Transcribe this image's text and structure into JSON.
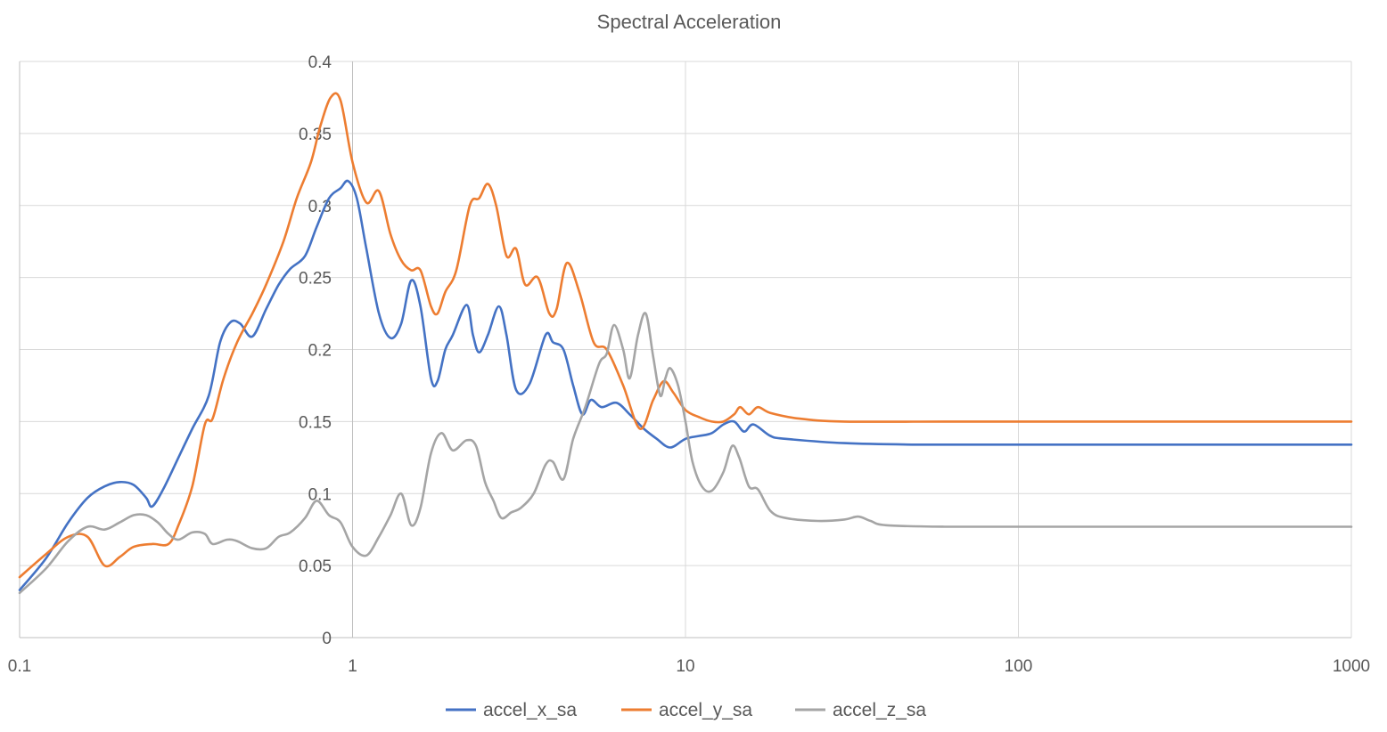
{
  "chart_data": {
    "type": "line",
    "title": "Spectral Acceleration",
    "xscale": "log",
    "xlim": [
      0.1,
      1000
    ],
    "ylim": [
      0,
      0.4
    ],
    "x_ticks": [
      0.1,
      1,
      10,
      100,
      1000
    ],
    "x_tick_labels": [
      "0.1",
      "1",
      "10",
      "100",
      "1000"
    ],
    "y_ticks": [
      0,
      0.05,
      0.1,
      0.15,
      0.2,
      0.25,
      0.3,
      0.35,
      0.4
    ],
    "y_tick_labels": [
      "0",
      "0.05",
      "0.1",
      "0.15",
      "0.2",
      "0.25",
      "0.3",
      "0.35",
      "0.4"
    ],
    "grid": true,
    "legend_position": "bottom",
    "colors": {
      "accel_x_sa": "#4472c4",
      "accel_y_sa": "#ed7d31",
      "accel_z_sa": "#a5a5a5"
    },
    "series": [
      {
        "name": "accel_x_sa",
        "color": "#4472c4",
        "points": [
          [
            0.1,
            0.033
          ],
          [
            0.12,
            0.055
          ],
          [
            0.14,
            0.08
          ],
          [
            0.16,
            0.097
          ],
          [
            0.18,
            0.105
          ],
          [
            0.2,
            0.108
          ],
          [
            0.22,
            0.106
          ],
          [
            0.24,
            0.097
          ],
          [
            0.25,
            0.091
          ],
          [
            0.27,
            0.103
          ],
          [
            0.3,
            0.125
          ],
          [
            0.33,
            0.145
          ],
          [
            0.37,
            0.168
          ],
          [
            0.4,
            0.205
          ],
          [
            0.43,
            0.219
          ],
          [
            0.46,
            0.218
          ],
          [
            0.5,
            0.209
          ],
          [
            0.55,
            0.228
          ],
          [
            0.6,
            0.245
          ],
          [
            0.65,
            0.256
          ],
          [
            0.72,
            0.265
          ],
          [
            0.78,
            0.285
          ],
          [
            0.85,
            0.305
          ],
          [
            0.92,
            0.312
          ],
          [
            0.97,
            0.317
          ],
          [
            1.03,
            0.305
          ],
          [
            1.1,
            0.27
          ],
          [
            1.2,
            0.225
          ],
          [
            1.3,
            0.208
          ],
          [
            1.4,
            0.218
          ],
          [
            1.5,
            0.248
          ],
          [
            1.6,
            0.23
          ],
          [
            1.72,
            0.18
          ],
          [
            1.8,
            0.178
          ],
          [
            1.9,
            0.2
          ],
          [
            2.0,
            0.21
          ],
          [
            2.2,
            0.231
          ],
          [
            2.3,
            0.21
          ],
          [
            2.4,
            0.198
          ],
          [
            2.55,
            0.21
          ],
          [
            2.75,
            0.23
          ],
          [
            2.9,
            0.21
          ],
          [
            3.1,
            0.172
          ],
          [
            3.4,
            0.176
          ],
          [
            3.8,
            0.21
          ],
          [
            4.0,
            0.205
          ],
          [
            4.3,
            0.2
          ],
          [
            4.6,
            0.175
          ],
          [
            4.9,
            0.155
          ],
          [
            5.2,
            0.165
          ],
          [
            5.6,
            0.16
          ],
          [
            6.2,
            0.163
          ],
          [
            6.8,
            0.155
          ],
          [
            7.5,
            0.145
          ],
          [
            8.2,
            0.138
          ],
          [
            9.0,
            0.132
          ],
          [
            10,
            0.138
          ],
          [
            11,
            0.14
          ],
          [
            12,
            0.142
          ],
          [
            13,
            0.148
          ],
          [
            14,
            0.15
          ],
          [
            15,
            0.143
          ],
          [
            16,
            0.148
          ],
          [
            18,
            0.14
          ],
          [
            20,
            0.138
          ],
          [
            30,
            0.135
          ],
          [
            50,
            0.134
          ],
          [
            100,
            0.134
          ],
          [
            200,
            0.134
          ],
          [
            500,
            0.134
          ],
          [
            1000,
            0.134
          ]
        ]
      },
      {
        "name": "accel_y_sa",
        "color": "#ed7d31",
        "points": [
          [
            0.1,
            0.042
          ],
          [
            0.12,
            0.058
          ],
          [
            0.14,
            0.07
          ],
          [
            0.16,
            0.07
          ],
          [
            0.18,
            0.05
          ],
          [
            0.2,
            0.056
          ],
          [
            0.22,
            0.063
          ],
          [
            0.25,
            0.065
          ],
          [
            0.28,
            0.065
          ],
          [
            0.3,
            0.078
          ],
          [
            0.33,
            0.105
          ],
          [
            0.36,
            0.148
          ],
          [
            0.38,
            0.152
          ],
          [
            0.41,
            0.18
          ],
          [
            0.45,
            0.205
          ],
          [
            0.5,
            0.225
          ],
          [
            0.55,
            0.245
          ],
          [
            0.62,
            0.275
          ],
          [
            0.68,
            0.305
          ],
          [
            0.75,
            0.33
          ],
          [
            0.8,
            0.355
          ],
          [
            0.86,
            0.375
          ],
          [
            0.92,
            0.373
          ],
          [
            1.0,
            0.33
          ],
          [
            1.1,
            0.302
          ],
          [
            1.2,
            0.31
          ],
          [
            1.3,
            0.28
          ],
          [
            1.4,
            0.262
          ],
          [
            1.5,
            0.255
          ],
          [
            1.6,
            0.255
          ],
          [
            1.72,
            0.23
          ],
          [
            1.8,
            0.225
          ],
          [
            1.9,
            0.24
          ],
          [
            2.05,
            0.255
          ],
          [
            2.25,
            0.3
          ],
          [
            2.4,
            0.305
          ],
          [
            2.55,
            0.315
          ],
          [
            2.7,
            0.3
          ],
          [
            2.9,
            0.265
          ],
          [
            3.1,
            0.27
          ],
          [
            3.3,
            0.245
          ],
          [
            3.6,
            0.25
          ],
          [
            3.9,
            0.225
          ],
          [
            4.1,
            0.228
          ],
          [
            4.4,
            0.26
          ],
          [
            4.8,
            0.24
          ],
          [
            5.3,
            0.205
          ],
          [
            5.8,
            0.2
          ],
          [
            6.5,
            0.175
          ],
          [
            7.3,
            0.145
          ],
          [
            8.0,
            0.165
          ],
          [
            8.6,
            0.178
          ],
          [
            9.2,
            0.17
          ],
          [
            10,
            0.158
          ],
          [
            11,
            0.153
          ],
          [
            12,
            0.15
          ],
          [
            13,
            0.15
          ],
          [
            14,
            0.155
          ],
          [
            14.6,
            0.16
          ],
          [
            15.5,
            0.155
          ],
          [
            16.5,
            0.16
          ],
          [
            18,
            0.156
          ],
          [
            22,
            0.152
          ],
          [
            30,
            0.15
          ],
          [
            60,
            0.15
          ],
          [
            100,
            0.15
          ],
          [
            200,
            0.15
          ],
          [
            500,
            0.15
          ],
          [
            1000,
            0.15
          ]
        ]
      },
      {
        "name": "accel_z_sa",
        "color": "#a5a5a5",
        "points": [
          [
            0.1,
            0.031
          ],
          [
            0.12,
            0.048
          ],
          [
            0.14,
            0.067
          ],
          [
            0.16,
            0.077
          ],
          [
            0.18,
            0.075
          ],
          [
            0.2,
            0.08
          ],
          [
            0.22,
            0.085
          ],
          [
            0.24,
            0.085
          ],
          [
            0.26,
            0.08
          ],
          [
            0.28,
            0.072
          ],
          [
            0.3,
            0.068
          ],
          [
            0.33,
            0.073
          ],
          [
            0.36,
            0.072
          ],
          [
            0.38,
            0.065
          ],
          [
            0.42,
            0.068
          ],
          [
            0.45,
            0.067
          ],
          [
            0.5,
            0.062
          ],
          [
            0.55,
            0.062
          ],
          [
            0.6,
            0.07
          ],
          [
            0.65,
            0.073
          ],
          [
            0.72,
            0.083
          ],
          [
            0.78,
            0.095
          ],
          [
            0.85,
            0.085
          ],
          [
            0.92,
            0.08
          ],
          [
            1.0,
            0.063
          ],
          [
            1.1,
            0.057
          ],
          [
            1.2,
            0.07
          ],
          [
            1.3,
            0.085
          ],
          [
            1.4,
            0.1
          ],
          [
            1.5,
            0.078
          ],
          [
            1.6,
            0.09
          ],
          [
            1.72,
            0.128
          ],
          [
            1.85,
            0.142
          ],
          [
            2.0,
            0.13
          ],
          [
            2.2,
            0.137
          ],
          [
            2.35,
            0.133
          ],
          [
            2.5,
            0.108
          ],
          [
            2.65,
            0.095
          ],
          [
            2.8,
            0.083
          ],
          [
            3.0,
            0.087
          ],
          [
            3.2,
            0.09
          ],
          [
            3.5,
            0.1
          ],
          [
            3.8,
            0.12
          ],
          [
            4.0,
            0.122
          ],
          [
            4.3,
            0.11
          ],
          [
            4.6,
            0.138
          ],
          [
            5.0,
            0.16
          ],
          [
            5.5,
            0.19
          ],
          [
            5.8,
            0.197
          ],
          [
            6.1,
            0.217
          ],
          [
            6.5,
            0.2
          ],
          [
            6.8,
            0.18
          ],
          [
            7.2,
            0.21
          ],
          [
            7.6,
            0.225
          ],
          [
            8.0,
            0.195
          ],
          [
            8.4,
            0.168
          ],
          [
            8.7,
            0.18
          ],
          [
            9.0,
            0.187
          ],
          [
            9.5,
            0.175
          ],
          [
            10,
            0.15
          ],
          [
            10.5,
            0.122
          ],
          [
            11.2,
            0.105
          ],
          [
            12,
            0.102
          ],
          [
            13,
            0.115
          ],
          [
            13.8,
            0.133
          ],
          [
            14.5,
            0.125
          ],
          [
            15.5,
            0.105
          ],
          [
            16.5,
            0.103
          ],
          [
            18,
            0.088
          ],
          [
            20,
            0.083
          ],
          [
            25,
            0.081
          ],
          [
            30,
            0.082
          ],
          [
            33,
            0.084
          ],
          [
            36,
            0.081
          ],
          [
            40,
            0.078
          ],
          [
            60,
            0.077
          ],
          [
            100,
            0.077
          ],
          [
            200,
            0.077
          ],
          [
            500,
            0.077
          ],
          [
            1000,
            0.077
          ]
        ]
      }
    ]
  }
}
